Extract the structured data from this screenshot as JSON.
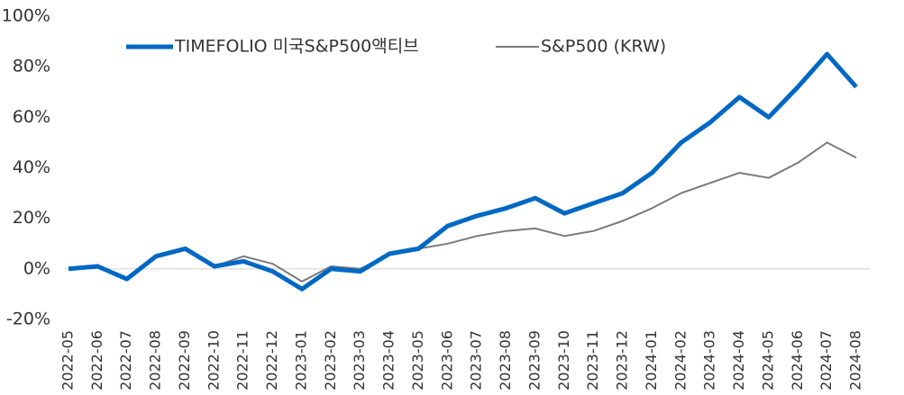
{
  "chart_data": {
    "type": "line",
    "categories": [
      "2022-05",
      "2022-06",
      "2022-07",
      "2022-08",
      "2022-09",
      "2022-10",
      "2022-11",
      "2022-12",
      "2023-01",
      "2023-02",
      "2023-03",
      "2023-04",
      "2023-05",
      "2023-06",
      "2023-07",
      "2023-08",
      "2023-09",
      "2023-10",
      "2023-11",
      "2023-12",
      "2024-01",
      "2024-02",
      "2024-03",
      "2024-04",
      "2024-05",
      "2024-06",
      "2024-07",
      "2024-08"
    ],
    "series": [
      {
        "name": "TIMEFOLIO 미국S&P500액티브",
        "color": "#0068c4",
        "values": [
          0,
          1,
          -4,
          5,
          8,
          1,
          3,
          -1,
          -8,
          0,
          -1,
          6,
          8,
          17,
          21,
          24,
          28,
          22,
          26,
          30,
          38,
          50,
          58,
          68,
          60,
          72,
          85,
          72
        ]
      },
      {
        "name": "S&P500 (KRW)",
        "color": "#7a7a7a",
        "values": [
          0,
          1,
          -4,
          5,
          8,
          1,
          5,
          2,
          -5,
          1,
          0,
          6,
          8,
          10,
          13,
          15,
          16,
          13,
          15,
          19,
          24,
          30,
          34,
          38,
          36,
          42,
          50,
          44
        ]
      }
    ],
    "ylim": [
      -20,
      100
    ],
    "yticks": [
      {
        "value": -20,
        "label": "-20%"
      },
      {
        "value": 0,
        "label": "0%"
      },
      {
        "value": 20,
        "label": "20%"
      },
      {
        "value": 40,
        "label": "40%"
      },
      {
        "value": 60,
        "label": "60%"
      },
      {
        "value": 80,
        "label": "80%"
      },
      {
        "value": 100,
        "label": "100%"
      }
    ],
    "legend": "top"
  }
}
